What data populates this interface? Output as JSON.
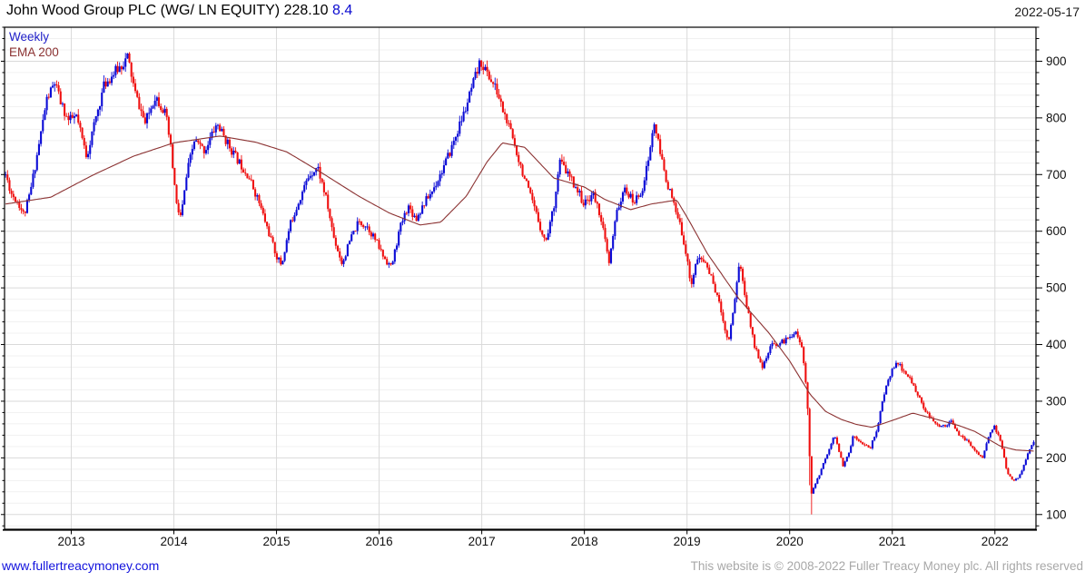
{
  "header": {
    "title": "John Wood Group PLC (WG/ LN EQUITY) 228.10",
    "change": "8.4",
    "date": "2022-05-17"
  },
  "legend": [
    {
      "label": "Weekly",
      "color": "#2121c8"
    },
    {
      "label": "EMA 200",
      "color": "#8b3232"
    }
  ],
  "footer": {
    "site_url": "www.fullertreacymoney.com",
    "copyright": "This website is © 2008-2022 Fuller Treacy Money plc. All rights reserved"
  },
  "chart_data": {
    "type": "candlestick",
    "title": "John Wood Group PLC (WG/ LN EQUITY)",
    "interval": "Weekly",
    "overlay": "EMA 200",
    "last_price": 228.1,
    "change": 8.4,
    "x_domain": [
      2012.35,
      2022.4
    ],
    "y_domain": [
      74,
      960
    ],
    "x_ticks": [
      2013,
      2014,
      2015,
      2016,
      2017,
      2018,
      2019,
      2020,
      2021,
      2022
    ],
    "y_ticks": [
      100,
      200,
      300,
      400,
      500,
      600,
      700,
      800,
      900
    ],
    "y_minor_step": 20,
    "grid": true,
    "up_color": "#0b0bd6",
    "down_color": "#ef0f0f",
    "ema_color": "#8b3232",
    "seed": 11,
    "noise_pct": 0.011,
    "close_anchors": [
      [
        2012.36,
        700
      ],
      [
        2012.42,
        665
      ],
      [
        2012.48,
        652
      ],
      [
        2012.54,
        628
      ],
      [
        2012.6,
        668
      ],
      [
        2012.68,
        748
      ],
      [
        2012.76,
        832
      ],
      [
        2012.84,
        862
      ],
      [
        2012.9,
        825
      ],
      [
        2012.97,
        795
      ],
      [
        2013.05,
        802
      ],
      [
        2013.15,
        732
      ],
      [
        2013.24,
        800
      ],
      [
        2013.32,
        858
      ],
      [
        2013.42,
        880
      ],
      [
        2013.5,
        895
      ],
      [
        2013.55,
        908
      ],
      [
        2013.62,
        845
      ],
      [
        2013.72,
        790
      ],
      [
        2013.82,
        840
      ],
      [
        2013.92,
        806
      ],
      [
        2013.97,
        745
      ],
      [
        2014.03,
        640
      ],
      [
        2014.07,
        625
      ],
      [
        2014.13,
        705
      ],
      [
        2014.2,
        760
      ],
      [
        2014.3,
        742
      ],
      [
        2014.42,
        790
      ],
      [
        2014.52,
        756
      ],
      [
        2014.62,
        726
      ],
      [
        2014.72,
        700
      ],
      [
        2014.82,
        656
      ],
      [
        2014.92,
        600
      ],
      [
        2015.0,
        556
      ],
      [
        2015.05,
        540
      ],
      [
        2015.13,
        610
      ],
      [
        2015.22,
        655
      ],
      [
        2015.32,
        700
      ],
      [
        2015.4,
        714
      ],
      [
        2015.48,
        660
      ],
      [
        2015.56,
        588
      ],
      [
        2015.64,
        542
      ],
      [
        2015.72,
        586
      ],
      [
        2015.8,
        616
      ],
      [
        2015.88,
        610
      ],
      [
        2015.96,
        586
      ],
      [
        2016.04,
        556
      ],
      [
        2016.12,
        536
      ],
      [
        2016.2,
        604
      ],
      [
        2016.28,
        645
      ],
      [
        2016.36,
        622
      ],
      [
        2016.44,
        650
      ],
      [
        2016.52,
        672
      ],
      [
        2016.6,
        702
      ],
      [
        2016.68,
        735
      ],
      [
        2016.76,
        775
      ],
      [
        2016.84,
        815
      ],
      [
        2016.92,
        862
      ],
      [
        2016.99,
        900
      ],
      [
        2017.06,
        876
      ],
      [
        2017.14,
        850
      ],
      [
        2017.22,
        806
      ],
      [
        2017.3,
        765
      ],
      [
        2017.38,
        715
      ],
      [
        2017.46,
        668
      ],
      [
        2017.54,
        625
      ],
      [
        2017.62,
        580
      ],
      [
        2017.7,
        642
      ],
      [
        2017.76,
        724
      ],
      [
        2017.84,
        700
      ],
      [
        2017.92,
        678
      ],
      [
        2018.0,
        646
      ],
      [
        2018.08,
        668
      ],
      [
        2018.16,
        626
      ],
      [
        2018.24,
        542
      ],
      [
        2018.32,
        640
      ],
      [
        2018.4,
        674
      ],
      [
        2018.48,
        650
      ],
      [
        2018.56,
        672
      ],
      [
        2018.62,
        722
      ],
      [
        2018.68,
        792
      ],
      [
        2018.74,
        736
      ],
      [
        2018.8,
        690
      ],
      [
        2018.88,
        640
      ],
      [
        2018.96,
        592
      ],
      [
        2019.04,
        506
      ],
      [
        2019.1,
        552
      ],
      [
        2019.18,
        545
      ],
      [
        2019.26,
        506
      ],
      [
        2019.34,
        455
      ],
      [
        2019.4,
        402
      ],
      [
        2019.46,
        472
      ],
      [
        2019.51,
        548
      ],
      [
        2019.58,
        470
      ],
      [
        2019.66,
        396
      ],
      [
        2019.74,
        360
      ],
      [
        2019.82,
        398
      ],
      [
        2019.9,
        402
      ],
      [
        2019.98,
        410
      ],
      [
        2020.06,
        425
      ],
      [
        2020.12,
        392
      ],
      [
        2020.17,
        312
      ],
      [
        2020.21,
        136
      ],
      [
        2020.27,
        162
      ],
      [
        2020.32,
        185
      ],
      [
        2020.38,
        215
      ],
      [
        2020.44,
        240
      ],
      [
        2020.52,
        185
      ],
      [
        2020.58,
        210
      ],
      [
        2020.62,
        240
      ],
      [
        2020.7,
        228
      ],
      [
        2020.78,
        215
      ],
      [
        2020.85,
        250
      ],
      [
        2020.9,
        295
      ],
      [
        2020.96,
        340
      ],
      [
        2021.02,
        362
      ],
      [
        2021.06,
        366
      ],
      [
        2021.12,
        350
      ],
      [
        2021.2,
        332
      ],
      [
        2021.28,
        298
      ],
      [
        2021.36,
        272
      ],
      [
        2021.44,
        256
      ],
      [
        2021.52,
        258
      ],
      [
        2021.58,
        264
      ],
      [
        2021.66,
        238
      ],
      [
        2021.74,
        228
      ],
      [
        2021.82,
        210
      ],
      [
        2021.88,
        200
      ],
      [
        2021.94,
        238
      ],
      [
        2021.99,
        256
      ],
      [
        2022.06,
        228
      ],
      [
        2022.12,
        172
      ],
      [
        2022.18,
        158
      ],
      [
        2022.24,
        168
      ],
      [
        2022.3,
        196
      ],
      [
        2022.35,
        222
      ],
      [
        2022.378,
        228.1
      ]
    ],
    "ema_anchors": [
      [
        2012.36,
        648
      ],
      [
        2012.8,
        660
      ],
      [
        2013.2,
        698
      ],
      [
        2013.6,
        732
      ],
      [
        2014.0,
        756
      ],
      [
        2014.45,
        768
      ],
      [
        2014.8,
        757
      ],
      [
        2015.1,
        740
      ],
      [
        2015.45,
        702
      ],
      [
        2015.8,
        662
      ],
      [
        2016.1,
        632
      ],
      [
        2016.4,
        611
      ],
      [
        2016.6,
        616
      ],
      [
        2016.85,
        662
      ],
      [
        2017.05,
        722
      ],
      [
        2017.2,
        756
      ],
      [
        2017.42,
        748
      ],
      [
        2017.7,
        694
      ],
      [
        2018.0,
        678
      ],
      [
        2018.2,
        656
      ],
      [
        2018.45,
        638
      ],
      [
        2018.65,
        648
      ],
      [
        2018.9,
        655
      ],
      [
        2019.0,
        625
      ],
      [
        2019.2,
        560
      ],
      [
        2019.5,
        482
      ],
      [
        2019.8,
        420
      ],
      [
        2020.0,
        371
      ],
      [
        2020.2,
        312
      ],
      [
        2020.35,
        282
      ],
      [
        2020.5,
        268
      ],
      [
        2020.65,
        259
      ],
      [
        2020.8,
        254
      ],
      [
        2021.0,
        266
      ],
      [
        2021.2,
        279
      ],
      [
        2021.45,
        267
      ],
      [
        2021.65,
        257
      ],
      [
        2021.8,
        247
      ],
      [
        2022.05,
        221
      ],
      [
        2022.2,
        214
      ],
      [
        2022.38,
        212
      ]
    ]
  }
}
